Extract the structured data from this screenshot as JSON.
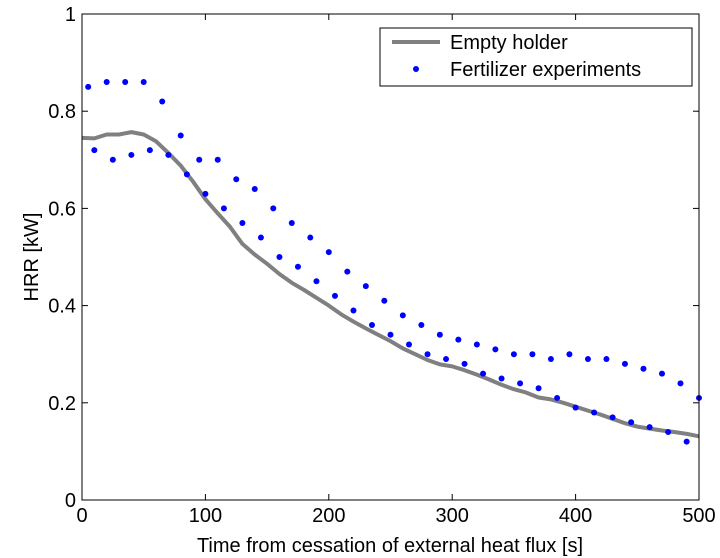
{
  "chart_data": {
    "type": "line",
    "title": "",
    "xlabel": "Time from cessation of external heat flux [s]",
    "ylabel": "HRR [kW]",
    "xlim": [
      0,
      500
    ],
    "ylim": [
      0,
      1
    ],
    "x_ticks": [
      0,
      100,
      200,
      300,
      400,
      500
    ],
    "y_ticks": [
      0,
      0.2,
      0.4,
      0.6,
      0.8,
      1
    ],
    "x_tick_labels": [
      "0",
      "100",
      "200",
      "300",
      "400",
      "500"
    ],
    "y_tick_labels": [
      "0",
      "0.2",
      "0.4",
      "0.6",
      "0.8",
      "1"
    ],
    "grid": false,
    "legend_position": "top-right",
    "series": [
      {
        "name": "Empty holder",
        "style": "line",
        "color": "#808080",
        "x": [
          0,
          10,
          20,
          30,
          40,
          50,
          60,
          70,
          80,
          90,
          100,
          110,
          120,
          130,
          140,
          150,
          160,
          170,
          180,
          190,
          200,
          210,
          220,
          230,
          240,
          250,
          260,
          270,
          280,
          290,
          300,
          310,
          320,
          330,
          340,
          350,
          360,
          370,
          380,
          390,
          400,
          410,
          420,
          430,
          440,
          450,
          460,
          470,
          480,
          490,
          500
        ],
        "y": [
          0.745,
          0.744,
          0.752,
          0.752,
          0.757,
          0.752,
          0.738,
          0.714,
          0.688,
          0.655,
          0.619,
          0.59,
          0.562,
          0.527,
          0.505,
          0.486,
          0.465,
          0.447,
          0.432,
          0.416,
          0.4,
          0.382,
          0.367,
          0.353,
          0.34,
          0.327,
          0.312,
          0.3,
          0.288,
          0.279,
          0.275,
          0.267,
          0.258,
          0.248,
          0.237,
          0.228,
          0.221,
          0.211,
          0.207,
          0.2,
          0.192,
          0.184,
          0.176,
          0.167,
          0.158,
          0.151,
          0.147,
          0.143,
          0.14,
          0.136,
          0.131
        ]
      },
      {
        "name": "Fertilizer experiments",
        "style": "markers",
        "color": "#0000ff",
        "x": [
          5,
          20,
          35,
          50,
          65,
          80,
          95,
          110,
          125,
          140,
          155,
          170,
          185,
          200,
          215,
          230,
          245,
          260,
          275,
          290,
          305,
          320,
          335,
          350,
          365,
          380,
          395,
          410,
          425,
          440,
          455,
          470,
          485,
          500,
          10,
          25,
          40,
          55,
          70,
          85,
          100,
          115,
          130,
          145,
          160,
          175,
          190,
          205,
          220,
          235,
          250,
          265,
          280,
          295,
          310,
          325,
          340,
          355,
          370,
          385,
          400,
          415,
          430,
          445,
          460,
          475,
          490
        ],
        "y": [
          0.85,
          0.86,
          0.86,
          0.86,
          0.82,
          0.75,
          0.7,
          0.7,
          0.66,
          0.64,
          0.6,
          0.57,
          0.54,
          0.51,
          0.47,
          0.44,
          0.41,
          0.38,
          0.36,
          0.34,
          0.33,
          0.32,
          0.31,
          0.3,
          0.3,
          0.29,
          0.3,
          0.29,
          0.29,
          0.28,
          0.27,
          0.26,
          0.24,
          0.21,
          0.72,
          0.7,
          0.71,
          0.72,
          0.71,
          0.67,
          0.63,
          0.6,
          0.57,
          0.54,
          0.5,
          0.48,
          0.45,
          0.42,
          0.39,
          0.36,
          0.34,
          0.32,
          0.3,
          0.29,
          0.28,
          0.26,
          0.25,
          0.24,
          0.23,
          0.21,
          0.19,
          0.18,
          0.17,
          0.16,
          0.15,
          0.14,
          0.12
        ]
      }
    ]
  }
}
